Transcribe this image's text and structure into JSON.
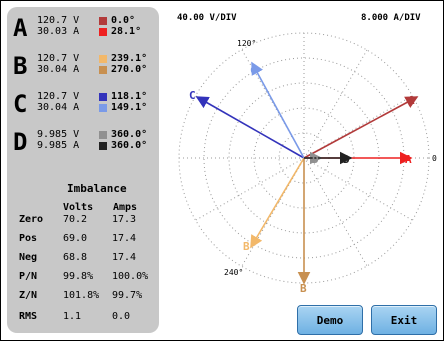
{
  "colors": {
    "phase_A": "#b23a3a",
    "phase_A_curr": "#ee2020",
    "phase_B": "#f2b86a",
    "phase_B_curr": "#c89050",
    "phase_C": "#3333bb",
    "phase_C_curr": "#7a9ae8",
    "phase_D": "#909090",
    "phase_D_curr": "#222222"
  },
  "phases": [
    {
      "letter": "A",
      "volts": "120.7",
      "v_unit": "V",
      "amps": "30.03",
      "a_unit": "A",
      "v_angle": "0.0°",
      "a_angle": "28.1°"
    },
    {
      "letter": "B",
      "volts": "120.7",
      "v_unit": "V",
      "amps": "30.04",
      "a_unit": "A",
      "v_angle": "239.1°",
      "a_angle": "270.0°"
    },
    {
      "letter": "C",
      "volts": "120.7",
      "v_unit": "V",
      "amps": "30.04",
      "a_unit": "A",
      "v_angle": "118.1°",
      "a_angle": "149.1°"
    },
    {
      "letter": "D",
      "volts": "9.985",
      "v_unit": "V",
      "amps": "9.985",
      "a_unit": "A",
      "v_angle": "360.0°",
      "a_angle": "360.0°"
    }
  ],
  "imbalance": {
    "title": "Imbalance",
    "col_volts": "Volts",
    "col_amps": "Amps",
    "rows": [
      {
        "label": "Zero",
        "volts": "70.2",
        "amps": "17.3"
      },
      {
        "label": "Pos",
        "volts": "69.0",
        "amps": "17.4"
      },
      {
        "label": "Neg",
        "volts": "68.8",
        "amps": "17.4"
      },
      {
        "label": "P/N",
        "volts": "99.8%",
        "amps": "100.0%"
      },
      {
        "label": "Z/N",
        "volts": "101.8%",
        "amps": "99.7%"
      },
      {
        "label": "RMS",
        "volts": "1.1",
        "amps": "0.0"
      }
    ]
  },
  "scale": {
    "volts": "40.00 V/DIV",
    "amps": "8.000 A/DIV"
  },
  "axis_labels": {
    "a120": "120°",
    "a240": "240°",
    "a0": "0"
  },
  "vector_labels": {
    "a": "A",
    "b": "B",
    "c": "C",
    "d": "D"
  },
  "buttons": {
    "demo": "Demo",
    "exit": "Exit"
  }
}
